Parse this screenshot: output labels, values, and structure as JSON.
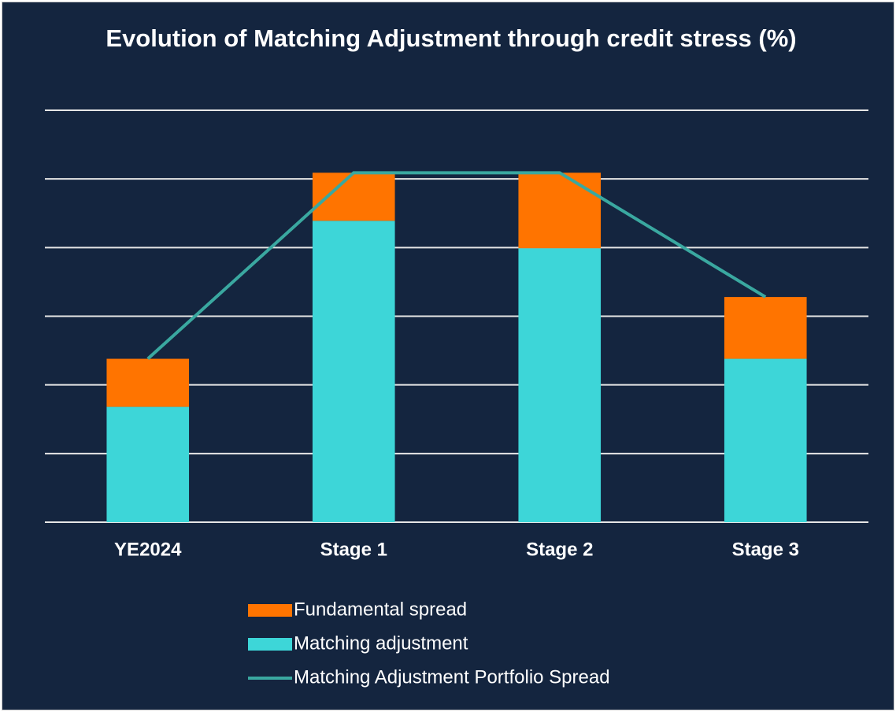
{
  "chart_data": {
    "type": "stacked_bar_line",
    "title": "Evolution of Matching Adjustment through credit stress (%)",
    "categories": [
      "YE2024",
      "Stage 1",
      "Stage 2",
      "Stage 3"
    ],
    "series": [
      {
        "name": "Matching adjustment",
        "color": "#3dd6d8",
        "kind": "bar",
        "values": [
          1.68,
          4.39,
          3.99,
          2.38
        ]
      },
      {
        "name": "Fundamental spread",
        "color": "#ff7400",
        "kind": "bar",
        "values": [
          0.7,
          0.7,
          1.1,
          0.9
        ]
      },
      {
        "name": "Matching Adjustment Portfolio Spread",
        "color": "#3aa8a0",
        "kind": "line",
        "values": [
          2.38,
          5.09,
          5.09,
          3.28
        ]
      }
    ],
    "ylim": [
      0,
      6
    ],
    "yticks": [
      0,
      1,
      2,
      3,
      4,
      5,
      6
    ],
    "grid": true,
    "show_tick_labels": false,
    "legend": "bottom"
  }
}
